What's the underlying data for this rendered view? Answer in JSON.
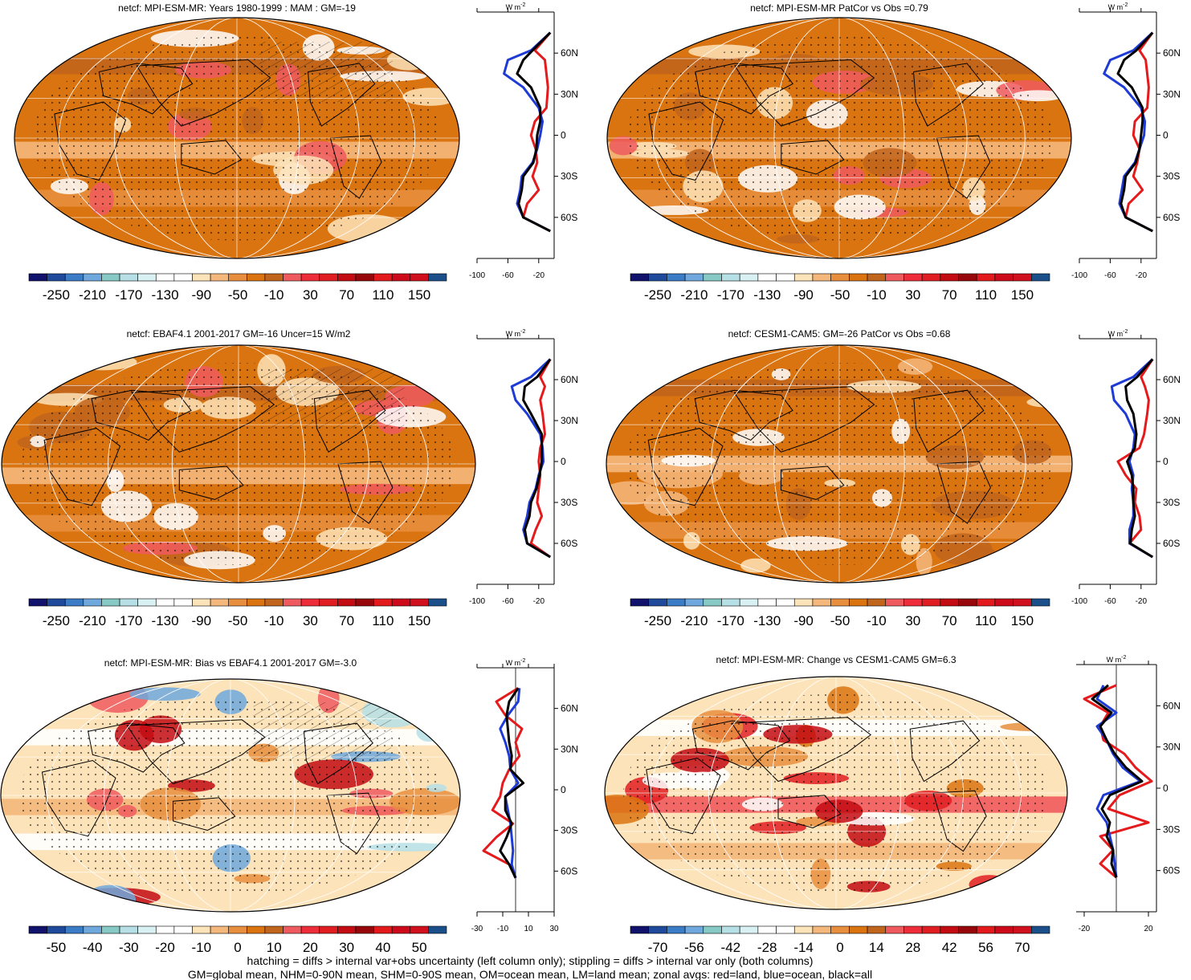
{
  "colorbars": {
    "main": {
      "colors": [
        "#11126b",
        "#1f4a9c",
        "#3a7cc5",
        "#6fa8dc",
        "#87c9c4",
        "#b6dfe6",
        "#d9f1f3",
        "#ffffff",
        "#ffffff",
        "#fde3b9",
        "#f4b77c",
        "#e78f3e",
        "#da7410",
        "#c1651c",
        "#ef5a5e",
        "#ed2d3a",
        "#e01e22",
        "#c30b12",
        "#97060b",
        "#e31a1c",
        "#cc0a19",
        "#d1101e",
        "#1b4f8a"
      ],
      "labels": [
        "-250",
        "-210",
        "-170",
        "-130",
        "-90",
        "-50",
        "-10",
        "30",
        "70",
        "110",
        "150"
      ]
    },
    "bias": {
      "colors": [
        "#11126b",
        "#1f4a9c",
        "#3a7cc5",
        "#6fa8dc",
        "#87c9c4",
        "#b6dfe6",
        "#d9f1f3",
        "#ffffff",
        "#ffffff",
        "#fde3b9",
        "#f4b77c",
        "#e78f3e",
        "#da7410",
        "#c1651c",
        "#ef5a5e",
        "#ed2d3a",
        "#e01e22",
        "#c30b12",
        "#97060b",
        "#e31a1c",
        "#cc0a19",
        "#d1101e",
        "#1b4f8a"
      ],
      "labels": [
        "-50",
        "-40",
        "-30",
        "-20",
        "-10",
        "0",
        "10",
        "20",
        "30",
        "40",
        "50"
      ]
    },
    "change": {
      "colors": [
        "#11126b",
        "#1f4a9c",
        "#3a7cc5",
        "#6fa8dc",
        "#87c9c4",
        "#b6dfe6",
        "#d9f1f3",
        "#ffffff",
        "#ffffff",
        "#fde3b9",
        "#f4b77c",
        "#e78f3e",
        "#da7410",
        "#c1651c",
        "#ef5a5e",
        "#ed2d3a",
        "#e01e22",
        "#c30b12",
        "#97060b",
        "#e31a1c",
        "#cc0a19",
        "#d1101e",
        "#1b4f8a"
      ],
      "labels": [
        "-70",
        "-56",
        "-42",
        "-28",
        "-14",
        "0",
        "14",
        "28",
        "42",
        "56",
        "70"
      ]
    }
  },
  "chart_data": [
    {
      "type": "heatmap",
      "title": "netcf: MPI-ESM-MR: Years 1980-1999 : MAM : GM=-19",
      "colorbar": "main",
      "style": "mean",
      "zonal": {
        "type": "line",
        "unit_label": "W m",
        "unit_power": "-2",
        "lat_labels": [
          "60N",
          "30N",
          "0",
          "30S",
          "60S"
        ],
        "x_ticks": [
          "-100",
          "-60",
          "-20"
        ],
        "xlim": [
          -100,
          0
        ],
        "series": [
          {
            "color": "#e41a1c",
            "lat": [
              75,
              62,
              55,
              45,
              35,
              20,
              10,
              0,
              -10,
              -20,
              -30,
              -40,
              -50,
              -60,
              -70
            ],
            "values": [
              -5,
              -25,
              -12,
              -10,
              -8,
              -10,
              -25,
              -30,
              -24,
              -22,
              -28,
              -20,
              -35,
              -40,
              -5
            ]
          },
          {
            "color": "#1f3bd6",
            "lat": [
              75,
              62,
              55,
              45,
              35,
              20,
              10,
              0,
              -10,
              -20,
              -30,
              -40,
              -50,
              -60,
              -70
            ],
            "values": [
              -5,
              -30,
              -60,
              -65,
              -40,
              -20,
              -15,
              -18,
              -22,
              -28,
              -42,
              -44,
              -48,
              -40,
              -5
            ]
          },
          {
            "color": "#000000",
            "lat": [
              75,
              62,
              55,
              45,
              35,
              20,
              10,
              0,
              -10,
              -20,
              -30,
              -40,
              -50,
              -60,
              -70
            ],
            "values": [
              -5,
              -28,
              -40,
              -48,
              -30,
              -18,
              -18,
              -22,
              -23,
              -27,
              -40,
              -42,
              -46,
              -40,
              -5
            ]
          }
        ]
      }
    },
    {
      "type": "heatmap",
      "title": "netcf: MPI-ESM-MR PatCor vs Obs =0.79",
      "colorbar": "main",
      "style": "mean",
      "zonal": {
        "type": "line",
        "unit_label": "W m",
        "unit_power": "-2",
        "lat_labels": [
          "60N",
          "30N",
          "0",
          "30S",
          "60S"
        ],
        "x_ticks": [
          "-100",
          "-60",
          "-20"
        ],
        "xlim": [
          -100,
          0
        ],
        "series": [
          {
            "color": "#e41a1c",
            "lat": [
              75,
              62,
              55,
              45,
              35,
              20,
              10,
              0,
              -10,
              -20,
              -30,
              -40,
              -50,
              -60,
              -70
            ],
            "values": [
              -5,
              -22,
              -14,
              -12,
              -10,
              -12,
              -28,
              -30,
              -22,
              -25,
              -30,
              -18,
              -36,
              -40,
              -5
            ]
          },
          {
            "color": "#1f3bd6",
            "lat": [
              75,
              62,
              55,
              45,
              35,
              20,
              10,
              0,
              -10,
              -20,
              -30,
              -40,
              -50,
              -60,
              -70
            ],
            "values": [
              -5,
              -30,
              -60,
              -68,
              -42,
              -20,
              -15,
              -16,
              -22,
              -28,
              -42,
              -45,
              -48,
              -40,
              -5
            ]
          },
          {
            "color": "#000000",
            "lat": [
              75,
              62,
              55,
              45,
              35,
              20,
              10,
              0,
              -10,
              -20,
              -30,
              -40,
              -50,
              -60,
              -70
            ],
            "values": [
              -5,
              -26,
              -42,
              -50,
              -32,
              -18,
              -18,
              -20,
              -22,
              -27,
              -40,
              -42,
              -46,
              -40,
              -5
            ]
          }
        ]
      }
    },
    {
      "type": "heatmap",
      "title": "netcf: EBAF4.1 2001-2017 GM=-16 Uncer=15 W/m2",
      "colorbar": "main",
      "style": "mean",
      "zonal": {
        "type": "line",
        "unit_label": "W m",
        "unit_power": "-2",
        "lat_labels": [
          "60N",
          "30N",
          "0",
          "30S",
          "60S"
        ],
        "x_ticks": [
          "-100",
          "-60",
          "-20"
        ],
        "xlim": [
          -100,
          0
        ],
        "series": [
          {
            "color": "#e41a1c",
            "lat": [
              75,
              62,
              55,
              45,
              35,
              20,
              10,
              0,
              -10,
              -20,
              -30,
              -40,
              -50,
              -60,
              -70
            ],
            "values": [
              -5,
              -18,
              -12,
              -18,
              -15,
              -12,
              -18,
              -20,
              -18,
              -20,
              -22,
              -16,
              -24,
              -30,
              -5
            ]
          },
          {
            "color": "#1f3bd6",
            "lat": [
              75,
              62,
              55,
              45,
              35,
              20,
              10,
              0,
              -10,
              -20,
              -30,
              -40,
              -50,
              -60,
              -70
            ],
            "values": [
              -5,
              -30,
              -55,
              -50,
              -35,
              -18,
              -15,
              -14,
              -20,
              -24,
              -32,
              -35,
              -40,
              -35,
              -5
            ]
          },
          {
            "color": "#000000",
            "lat": [
              75,
              62,
              55,
              45,
              35,
              20,
              10,
              0,
              -10,
              -20,
              -30,
              -40,
              -50,
              -60,
              -70
            ],
            "values": [
              -5,
              -22,
              -38,
              -40,
              -30,
              -16,
              -16,
              -16,
              -19,
              -23,
              -30,
              -32,
              -38,
              -35,
              -5
            ]
          }
        ]
      }
    },
    {
      "type": "heatmap",
      "title": "netcf: CESM1-CAM5: GM=-26 PatCor vs Obs =0.68",
      "colorbar": "main",
      "style": "mean2",
      "zonal": {
        "type": "line",
        "unit_label": "W m",
        "unit_power": "-2",
        "lat_labels": [
          "60N",
          "30N",
          "0",
          "30S",
          "60S"
        ],
        "x_ticks": [
          "-100",
          "-60",
          "-20"
        ],
        "xlim": [
          -100,
          0
        ],
        "series": [
          {
            "color": "#e41a1c",
            "lat": [
              75,
              62,
              55,
              45,
              35,
              20,
              10,
              0,
              -10,
              -20,
              -30,
              -40,
              -50,
              -60,
              -70
            ],
            "values": [
              -5,
              -20,
              -15,
              -10,
              -12,
              -16,
              -22,
              -50,
              -40,
              -26,
              -28,
              -22,
              -20,
              -35,
              -5
            ]
          },
          {
            "color": "#1f3bd6",
            "lat": [
              75,
              62,
              55,
              45,
              35,
              20,
              10,
              0,
              -10,
              -20,
              -30,
              -40,
              -50,
              -60,
              -70
            ],
            "values": [
              -5,
              -30,
              -58,
              -55,
              -40,
              -28,
              -30,
              -35,
              -30,
              -32,
              -30,
              -30,
              -35,
              -35,
              -5
            ]
          },
          {
            "color": "#000000",
            "lat": [
              75,
              62,
              55,
              45,
              35,
              20,
              10,
              0,
              -10,
              -20,
              -30,
              -40,
              -50,
              -60,
              -70
            ],
            "values": [
              -5,
              -25,
              -40,
              -38,
              -30,
              -26,
              -28,
              -38,
              -32,
              -30,
              -30,
              -28,
              -32,
              -34,
              -5
            ]
          }
        ]
      }
    },
    {
      "type": "heatmap",
      "title": "netcf: MPI-ESM-MR: Bias vs EBAF4.1 2001-2017 GM=-3.0",
      "colorbar": "bias",
      "style": "bias",
      "zonal": {
        "type": "line",
        "unit_label": "W m",
        "unit_power": "-2",
        "lat_labels": [
          "60N",
          "30N",
          "0",
          "30S",
          "60S"
        ],
        "x_ticks": [
          "-30",
          "-10",
          "10",
          "30"
        ],
        "xlim": [
          -30,
          30
        ],
        "series": [
          {
            "color": "#e41a1c",
            "lat": [
              75,
              65,
              55,
              45,
              35,
              25,
              15,
              5,
              -5,
              -15,
              -25,
              -35,
              -45,
              -55,
              -65
            ],
            "values": [
              2,
              -15,
              -8,
              5,
              0,
              3,
              -5,
              -10,
              -12,
              -18,
              -2,
              -15,
              -25,
              -5,
              0
            ]
          },
          {
            "color": "#1f3bd6",
            "lat": [
              75,
              65,
              55,
              45,
              35,
              25,
              15,
              5,
              -5,
              -15,
              -25,
              -35,
              -45,
              -55,
              -65
            ],
            "values": [
              3,
              2,
              -6,
              -12,
              -8,
              -5,
              -4,
              2,
              -8,
              -6,
              -4,
              -3,
              -2,
              -3,
              0
            ]
          },
          {
            "color": "#000000",
            "lat": [
              75,
              65,
              55,
              45,
              35,
              25,
              15,
              5,
              -5,
              -15,
              -25,
              -35,
              -45,
              -55,
              -65
            ],
            "values": [
              2,
              -5,
              -7,
              -6,
              -5,
              -3,
              -4,
              6,
              -8,
              -8,
              -3,
              -7,
              -12,
              -5,
              0
            ]
          }
        ]
      }
    },
    {
      "type": "heatmap",
      "title": "netcf: MPI-ESM-MR: Change vs CESM1-CAM5 GM=6.3",
      "colorbar": "change",
      "style": "change",
      "zonal": {
        "type": "line",
        "unit_label": "W m",
        "unit_power": "-2",
        "lat_labels": [
          "60N",
          "30N",
          "0",
          "30S",
          "60S"
        ],
        "x_ticks": [
          "-20",
          "20"
        ],
        "xlim": [
          -25,
          25
        ],
        "series": [
          {
            "color": "#e41a1c",
            "lat": [
              75,
              65,
              55,
              45,
              35,
              25,
              15,
              5,
              -5,
              -15,
              -25,
              -35,
              -45,
              -55,
              -65
            ],
            "values": [
              0,
              -20,
              -5,
              -10,
              -8,
              5,
              12,
              22,
              2,
              -5,
              20,
              -10,
              -2,
              -10,
              0
            ]
          },
          {
            "color": "#1f3bd6",
            "lat": [
              75,
              65,
              55,
              45,
              35,
              25,
              15,
              5,
              -5,
              -15,
              -25,
              -35,
              -45,
              -55,
              -65
            ],
            "values": [
              -8,
              -12,
              0,
              -12,
              -6,
              -2,
              4,
              15,
              -8,
              -12,
              -6,
              -4,
              -2,
              -1,
              0
            ]
          },
          {
            "color": "#000000",
            "lat": [
              75,
              65,
              55,
              45,
              35,
              25,
              15,
              5,
              -5,
              -15,
              -25,
              -35,
              -45,
              -55,
              -65
            ],
            "values": [
              -5,
              -15,
              -3,
              -10,
              -6,
              -1,
              6,
              16,
              -4,
              -9,
              -4,
              -6,
              -2,
              -3,
              0
            ]
          }
        ]
      }
    }
  ],
  "footer": {
    "line1": "hatching = diffs > internal var+obs uncertainty (left column only); stippling = diffs > internal var only (both columns)",
    "line2": "GM=global mean, NHM=0-90N mean, SHM=0-90S mean, OM=ocean mean, LM=land mean; zonal avgs: red=land, blue=ocean, black=all"
  }
}
